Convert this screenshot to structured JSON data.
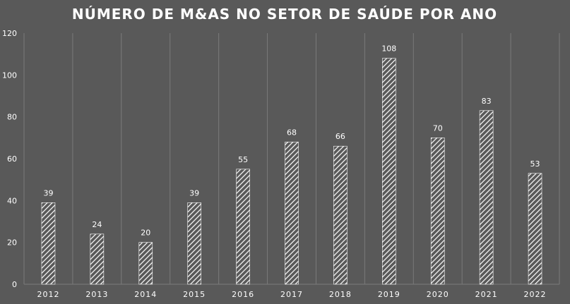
{
  "chart_data": {
    "type": "bar",
    "title": "NÚMERO DE M&AS NO SETOR DE SAÚDE POR ANO",
    "xlabel": "",
    "ylabel": "",
    "categories": [
      "2012",
      "2013",
      "2014",
      "2015",
      "2016",
      "2017",
      "2018",
      "2019",
      "2020",
      "2021",
      "2022"
    ],
    "values": [
      39,
      24,
      20,
      39,
      55,
      68,
      66,
      108,
      70,
      83,
      53
    ],
    "ylim": [
      0,
      120
    ],
    "yticks": [
      0,
      20,
      40,
      60,
      80,
      100,
      120
    ],
    "grid": "vertical",
    "legend": "none",
    "data_labels": true,
    "bar_fill": "diagonal-hatch"
  },
  "colors": {
    "background": "#595959",
    "text": "#ffffff",
    "bar_hatch": "#ffffff",
    "bar_fill": "#595959",
    "gridline": "#7a7a7a"
  }
}
